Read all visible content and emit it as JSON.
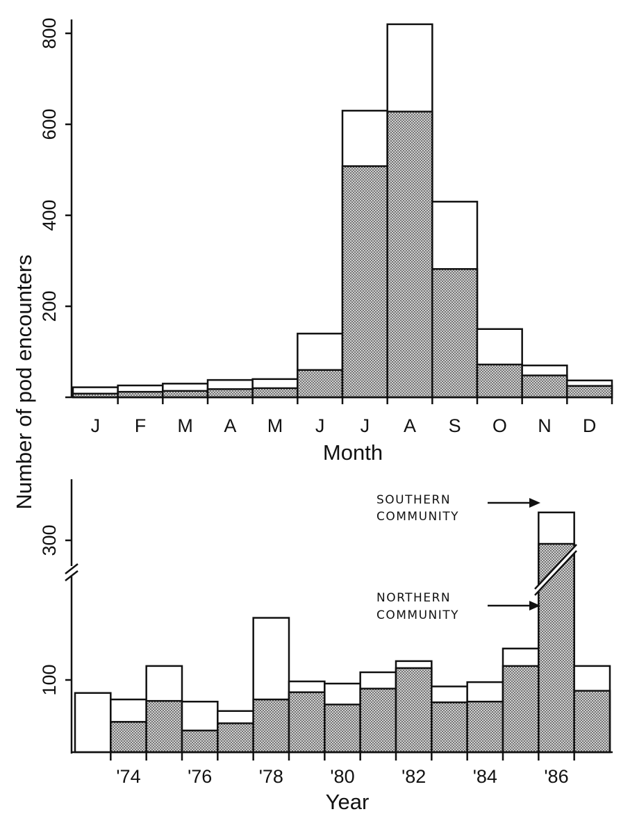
{
  "colors": {
    "southern": "#ffffff",
    "northern": "#c9c9c9",
    "outline": "#111111"
  },
  "shared_ylabel": "Number of pod encounters",
  "chart_data": [
    {
      "type": "bar",
      "stacked": true,
      "xlabel": "Month",
      "categories": [
        "J",
        "F",
        "M",
        "A",
        "M",
        "J",
        "J",
        "A",
        "S",
        "O",
        "N",
        "D"
      ],
      "series": [
        {
          "key": "northern",
          "values": [
            8,
            12,
            14,
            18,
            20,
            60,
            508,
            628,
            282,
            72,
            48,
            25
          ]
        },
        {
          "key": "southern",
          "values": [
            14,
            14,
            16,
            20,
            20,
            80,
            122,
            192,
            148,
            78,
            22,
            12
          ]
        }
      ],
      "yticks": [
        0,
        200,
        400,
        600,
        800
      ],
      "ytick_labels": [
        "",
        "200",
        "400",
        "600",
        "800"
      ],
      "ylim": [
        0,
        830
      ]
    },
    {
      "type": "bar",
      "stacked": true,
      "xlabel": "Year",
      "categories": [
        "1973",
        "1974",
        "1975",
        "1976",
        "1977",
        "1978",
        "1979",
        "1980",
        "1981",
        "1982",
        "1983",
        "1984",
        "1985",
        "1986",
        "1987"
      ],
      "xtick_labels": [
        "'74",
        "'76",
        "'78",
        "'80",
        "'82",
        "'84",
        "'86"
      ],
      "xtick_label_years": [
        "1974",
        "1976",
        "1978",
        "1980",
        "1982",
        "1984",
        "1986"
      ],
      "series": [
        {
          "key": "northern",
          "values": [
            0,
            42,
            71,
            30,
            40,
            73,
            83,
            66,
            88,
            117,
            69,
            70,
            120,
            295,
            85
          ]
        },
        {
          "key": "southern",
          "values": [
            82,
            31,
            49,
            40,
            17,
            116,
            15,
            29,
            23,
            10,
            22,
            27,
            25,
            45,
            35
          ]
        }
      ],
      "yticks": [
        100,
        300
      ],
      "ytick_labels": [
        "100",
        "300"
      ],
      "axis_break": true,
      "annotations": [
        {
          "target": "southern",
          "lines": [
            "SOUTHERN",
            "COMMUNITY"
          ]
        },
        {
          "target": "northern",
          "lines": [
            "NORTHERN",
            "COMMUNITY"
          ]
        }
      ]
    }
  ]
}
